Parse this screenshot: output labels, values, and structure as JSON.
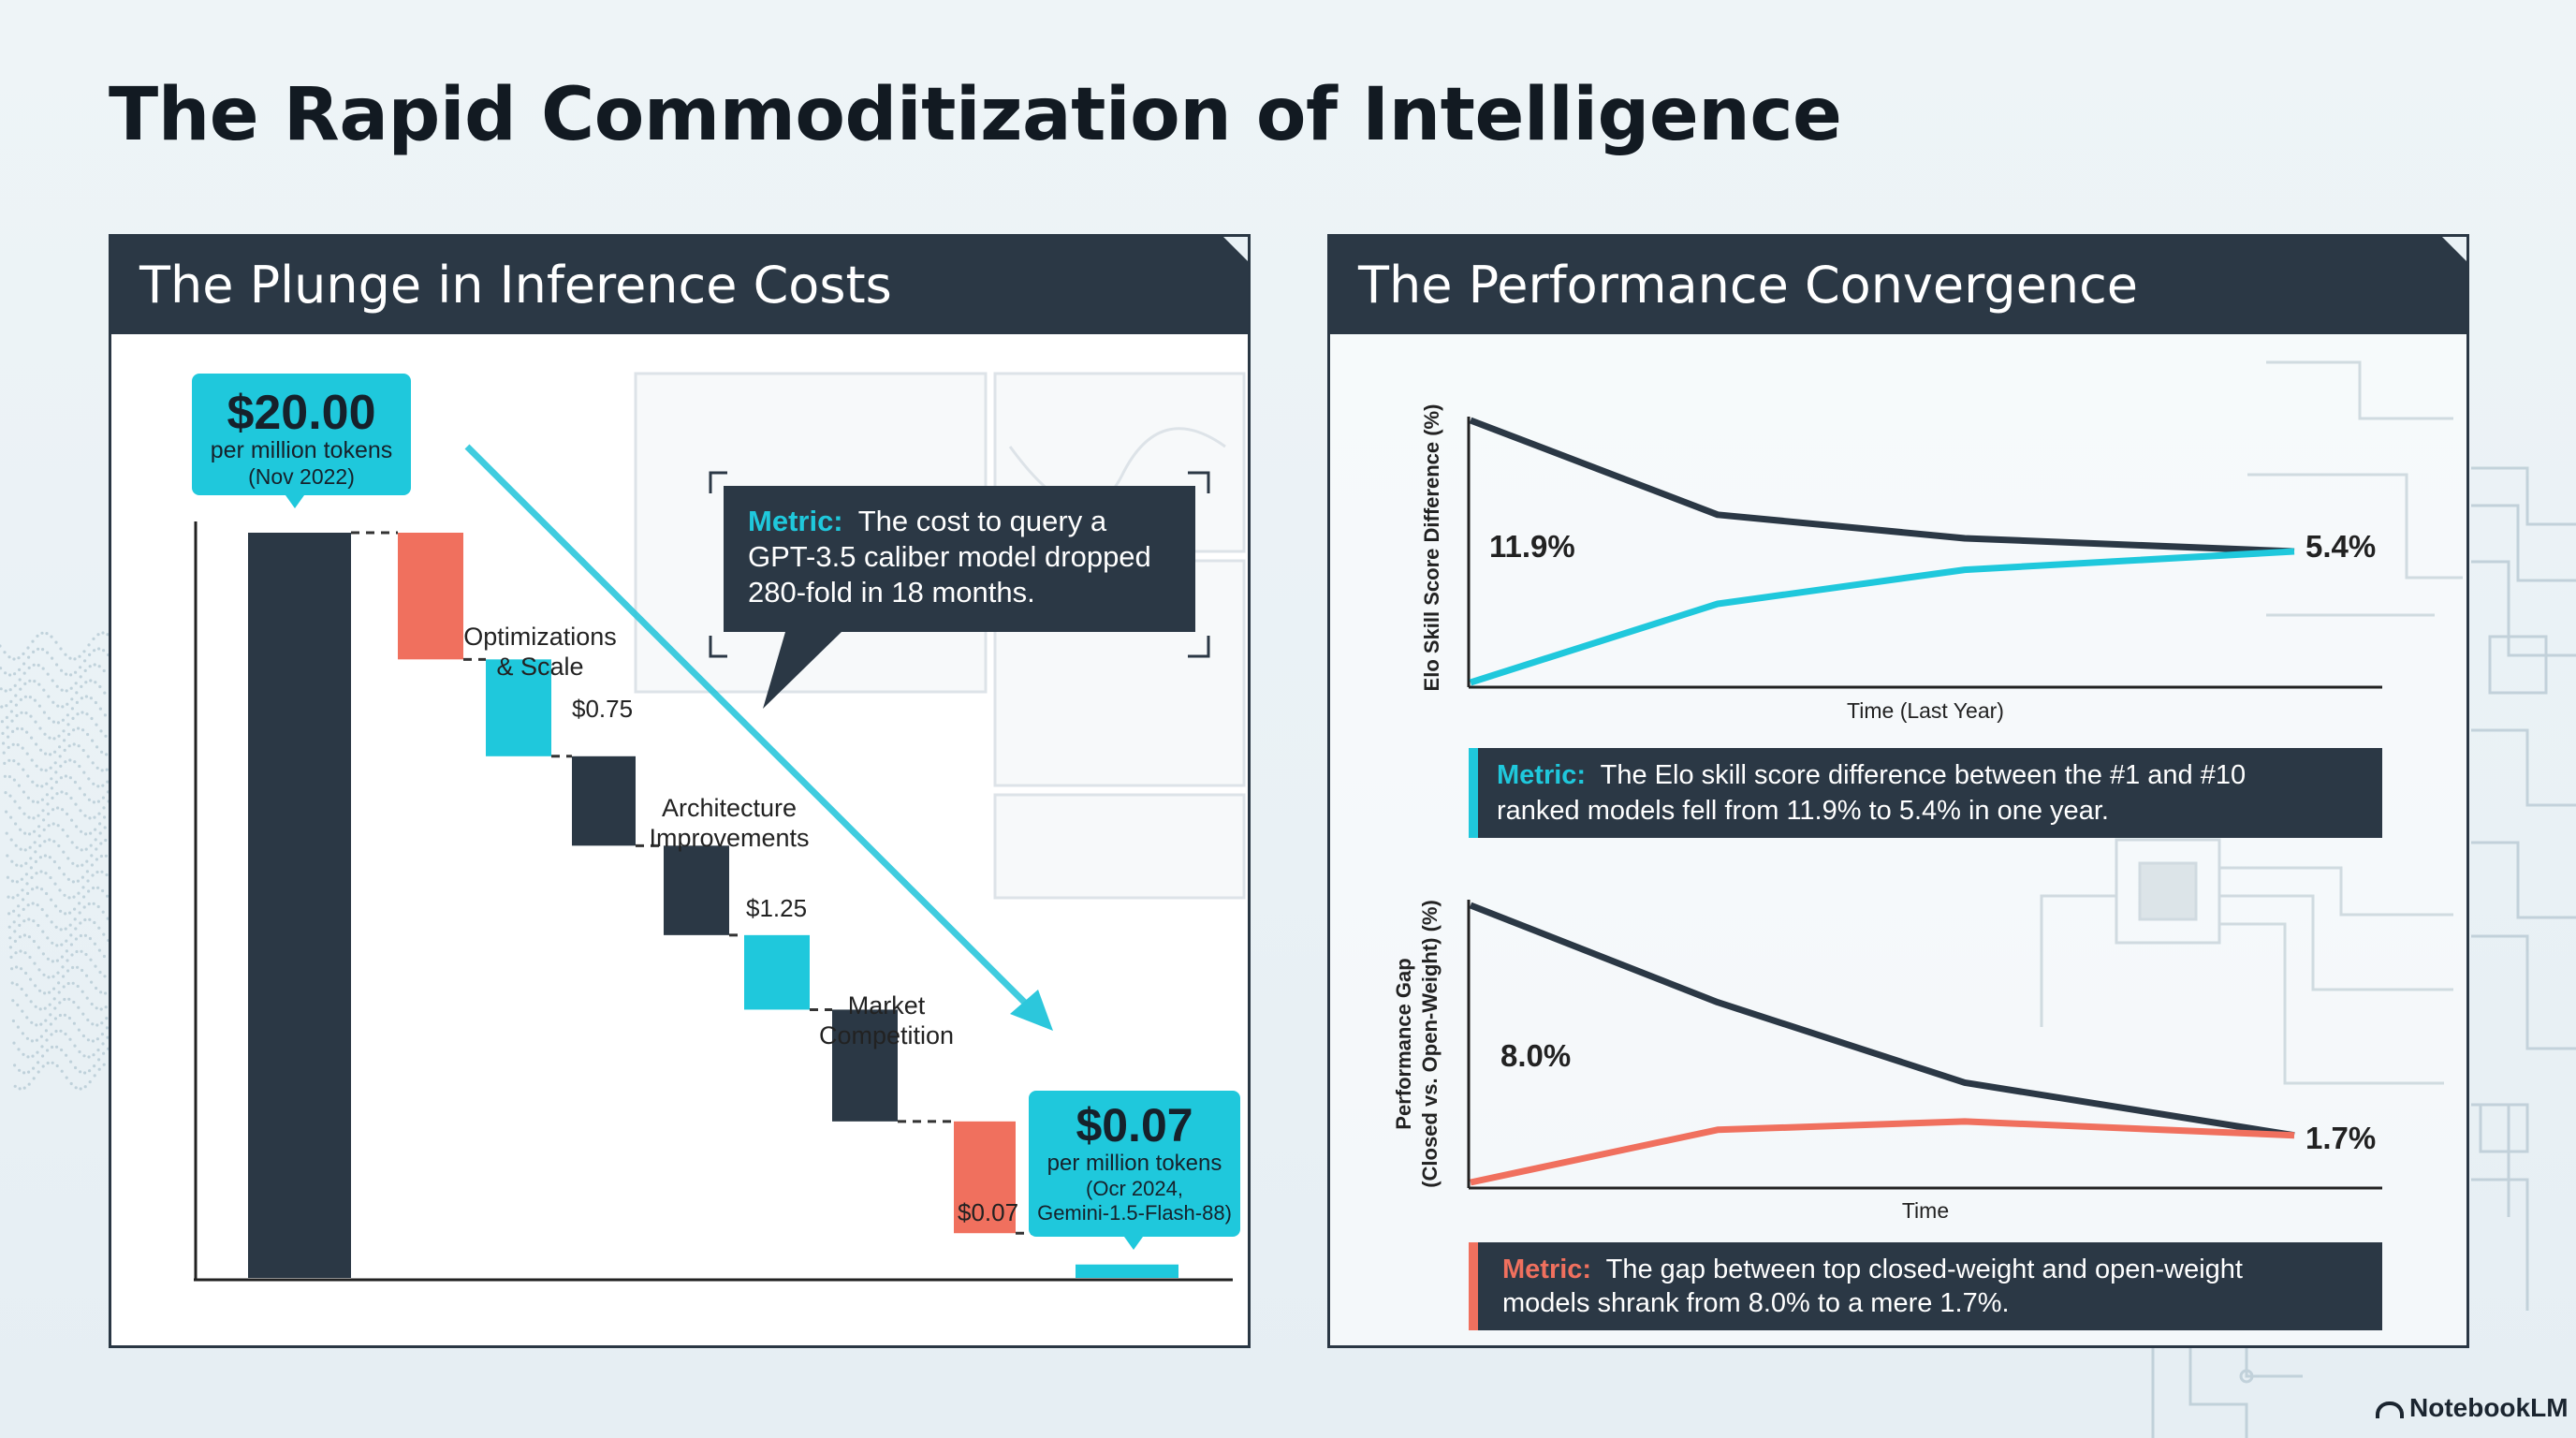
{
  "page": {
    "title": "The Rapid Commoditization of Intelligence",
    "footer_brand": "NotebookLM"
  },
  "colors": {
    "dark": "#2b3845",
    "teal": "#1fc8dc",
    "coral": "#f0705e",
    "muted": "#f4f6f8"
  },
  "left_panel": {
    "title": "The Plunge in Inference Costs",
    "callout": {
      "label": "Metric:",
      "lines": [
        "The cost to query a",
        "GPT-3.5 caliber model dropped",
        "280-fold in 18 months."
      ]
    },
    "start_badge": {
      "value": "$20.00",
      "unit": "per million tokens",
      "date": "(Nov 2022)"
    },
    "end_badge": {
      "value": "$0.07",
      "unit": "per million tokens",
      "date": "(Ocr 2024,",
      "model": "Gemini-1.5-Flash-88)"
    }
  },
  "right_panel": {
    "title": "The Performance Convergence",
    "metric1": {
      "label": "Metric:",
      "lines": [
        "The Elo skill score difference between the #1 and #10",
        "ranked models fell from 11.9% to 5.4% in one year."
      ]
    },
    "metric2": {
      "label": "Metric:",
      "lines": [
        "The gap between top closed-weight and open-weight",
        "models shrank from 8.0% to a mere 1.7%."
      ]
    }
  },
  "chart_data": [
    {
      "type": "bar",
      "title": "The Plunge in Inference Costs",
      "variant": "waterfall",
      "y_scale": "illustrative",
      "steps": [
        {
          "kind": "total",
          "value": 20.0,
          "label": "$20.00",
          "color": "dark"
        },
        {
          "kind": "decrease",
          "group": "Optimizations & Scale",
          "color": "coral"
        },
        {
          "kind": "decrease",
          "group": "Optimizations & Scale",
          "color": "teal"
        },
        {
          "kind": "decrease",
          "label": "$0.75",
          "color": "dark"
        },
        {
          "kind": "decrease",
          "group": "Architecture Improvements",
          "color": "dark"
        },
        {
          "kind": "decrease",
          "label": "$1.25",
          "color": "teal"
        },
        {
          "kind": "decrease",
          "group": "Market Competition",
          "color": "dark"
        },
        {
          "kind": "decrease",
          "label": "$0.07",
          "color": "coral"
        },
        {
          "kind": "total",
          "value": 0.07,
          "label": "$0.07",
          "color": "teal"
        }
      ],
      "annotations": [
        "Optimizations",
        "& Scale",
        "Architecture",
        "Improvements",
        "Market",
        "Competition"
      ],
      "relative_levels": [
        1.0,
        0.83,
        0.7,
        0.58,
        0.46,
        0.36,
        0.21,
        0.06,
        0.015,
        0.0
      ]
    },
    {
      "type": "line",
      "xlabel": "Time (Last Year)",
      "ylabel": "Elo Skill Score Difference (%)",
      "x": [
        0,
        0.3,
        0.6,
        1.0
      ],
      "series": [
        {
          "values": [
            1.0,
            0.64,
            0.55,
            0.5
          ],
          "color": "dark"
        },
        {
          "values": [
            0.0,
            0.3,
            0.43,
            0.5
          ],
          "color": "teal"
        }
      ],
      "labels": {
        "start": "11.9%",
        "end": "5.4%"
      }
    },
    {
      "type": "line",
      "xlabel": "Time",
      "ylabel_lines": [
        "Performance Gap",
        "(Closed vs. Open-Weight) (%)"
      ],
      "x": [
        0,
        0.3,
        0.6,
        1.0
      ],
      "series": [
        {
          "values": [
            1.0,
            0.65,
            0.36,
            0.17
          ],
          "color": "dark"
        },
        {
          "values": [
            0.0,
            0.19,
            0.22,
            0.17
          ],
          "color": "coral"
        }
      ],
      "labels": {
        "start": "8.0%",
        "end": "1.7%"
      }
    }
  ]
}
